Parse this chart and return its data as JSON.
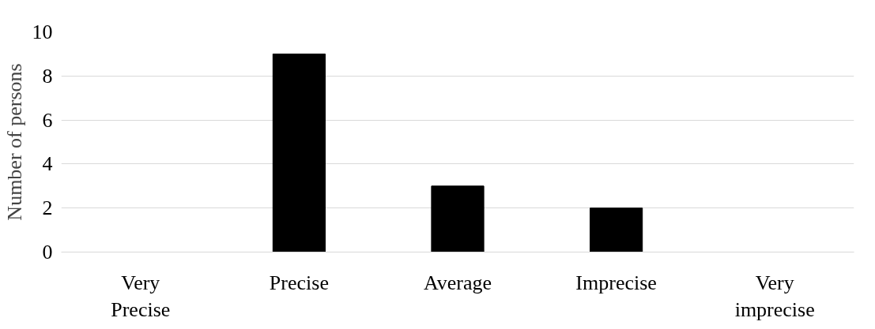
{
  "chart_data": {
    "type": "bar",
    "ylabel": "Number of persons",
    "categories": [
      "Very Precise",
      "Precise",
      "Average",
      "Imprecise",
      "Very imprecise"
    ],
    "values": [
      0,
      9,
      3,
      2,
      0
    ],
    "color": "#000000",
    "ylim": [
      0,
      10
    ],
    "yticks": [
      0,
      2,
      4,
      6,
      8,
      10
    ],
    "grid": "y"
  }
}
